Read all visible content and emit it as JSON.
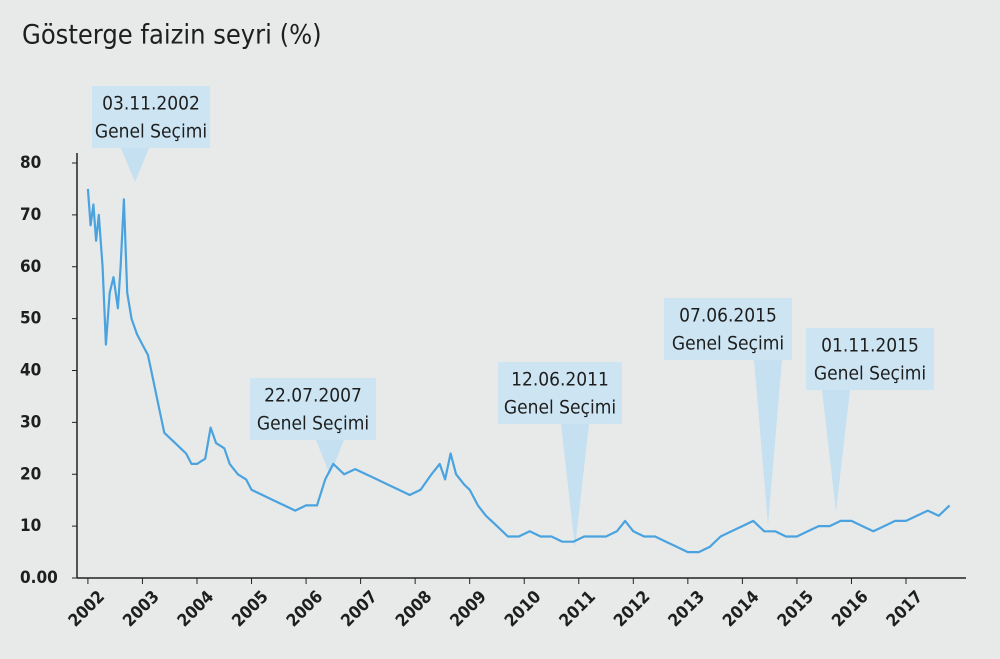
{
  "chart_data": {
    "type": "line",
    "title": "Gösterge faizin seyri (%)",
    "x": [
      2002.0,
      2002.05,
      2002.1,
      2002.15,
      2002.2,
      2002.27,
      2002.33,
      2002.4,
      2002.47,
      2002.55,
      2002.6,
      2002.66,
      2002.72,
      2002.8,
      2002.9,
      2003.0,
      2003.1,
      2003.2,
      2003.3,
      2003.4,
      2003.5,
      2003.6,
      2003.7,
      2003.8,
      2003.9,
      2004.0,
      2004.15,
      2004.25,
      2004.35,
      2004.5,
      2004.6,
      2004.75,
      2004.9,
      2005.0,
      2005.2,
      2005.4,
      2005.6,
      2005.8,
      2006.0,
      2006.2,
      2006.35,
      2006.5,
      2006.7,
      2006.9,
      2007.1,
      2007.3,
      2007.5,
      2007.7,
      2007.9,
      2008.1,
      2008.3,
      2008.45,
      2008.55,
      2008.65,
      2008.75,
      2008.9,
      2009.0,
      2009.15,
      2009.3,
      2009.5,
      2009.7,
      2009.9,
      2010.1,
      2010.3,
      2010.5,
      2010.7,
      2010.9,
      2011.1,
      2011.3,
      2011.5,
      2011.7,
      2011.85,
      2012.0,
      2012.2,
      2012.4,
      2012.6,
      2012.8,
      2013.0,
      2013.2,
      2013.4,
      2013.6,
      2013.8,
      2014.0,
      2014.2,
      2014.4,
      2014.6,
      2014.8,
      2015.0,
      2015.2,
      2015.4,
      2015.6,
      2015.8,
      2016.0,
      2016.2,
      2016.4,
      2016.6,
      2016.8,
      2017.0,
      2017.2,
      2017.4,
      2017.6,
      2017.8
    ],
    "series": [
      {
        "name": "Gösterge faiz",
        "color": "#4aa3df",
        "values": [
          75,
          68,
          72,
          65,
          70,
          60,
          45,
          55,
          58,
          52,
          60,
          73,
          55,
          50,
          47,
          45,
          43,
          38,
          33,
          28,
          27,
          26,
          25,
          24,
          22,
          22,
          23,
          29,
          26,
          25,
          22,
          20,
          19,
          17,
          16,
          15,
          14,
          13,
          14,
          14,
          19,
          22,
          20,
          21,
          20,
          19,
          18,
          17,
          16,
          17,
          20,
          22,
          19,
          24,
          20,
          18,
          17,
          14,
          12,
          10,
          8,
          8,
          9,
          8,
          8,
          7,
          7,
          8,
          8,
          8,
          9,
          11,
          9,
          8,
          8,
          7,
          6,
          5,
          5,
          6,
          8,
          9,
          10,
          11,
          9,
          9,
          8,
          8,
          9,
          10,
          10,
          11,
          11,
          10,
          9,
          10,
          11,
          11,
          12,
          13,
          12,
          14
        ]
      }
    ],
    "xlim": [
      2001.8,
      2018.1
    ],
    "xticks": [
      2002,
      2003,
      2004,
      2005,
      2006,
      2007,
      2008,
      2009,
      2010,
      2011,
      2012,
      2013,
      2014,
      2015,
      2016,
      2017
    ],
    "ylim": [
      0,
      80
    ],
    "yticks": [
      {
        "value": 0,
        "label": "0.00"
      },
      10,
      20,
      30,
      40,
      50,
      60,
      70,
      80
    ],
    "annotations": [
      {
        "date": "03.11.2002",
        "text": "Genel Seçimi"
      },
      {
        "date": "22.07.2007",
        "text": "Genel Seçimi"
      },
      {
        "date": "12.06.2011",
        "text": "Genel Seçimi"
      },
      {
        "date": "07.06.2015",
        "text": "Genel Seçimi"
      },
      {
        "date": "01.11.2015",
        "text": "Genel Seçimi"
      }
    ]
  }
}
